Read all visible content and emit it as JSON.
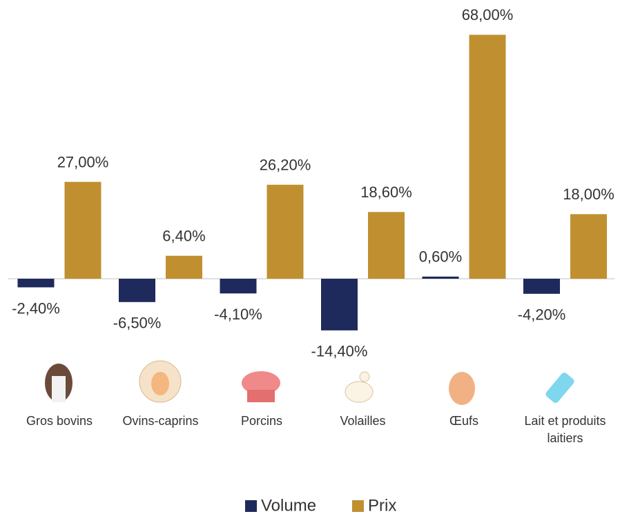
{
  "chart_data": {
    "type": "bar",
    "categories": [
      "Gros bovins",
      "Ovins-caprins",
      "Porcins",
      "Volailles",
      "Œufs",
      "Lait et produits laitiers"
    ],
    "series": [
      {
        "name": "Volume",
        "color": "#1f2a5c",
        "values": [
          -2.4,
          -6.5,
          -4.1,
          -14.4,
          0.6,
          -4.2
        ],
        "value_labels": [
          "-2,40%",
          "-6,50%",
          "-4,10%",
          "-14,40%",
          "0,60%",
          "-4,20%"
        ]
      },
      {
        "name": "Prix",
        "color": "#c09030",
        "values": [
          27.0,
          6.4,
          26.2,
          18.6,
          68.0,
          18.0
        ],
        "value_labels": [
          "27,00%",
          "6,40%",
          "26,20%",
          "18,60%",
          "68,00%",
          "18,00%"
        ]
      }
    ],
    "ylim": [
      -20,
      72
    ],
    "legend": "bottom"
  }
}
